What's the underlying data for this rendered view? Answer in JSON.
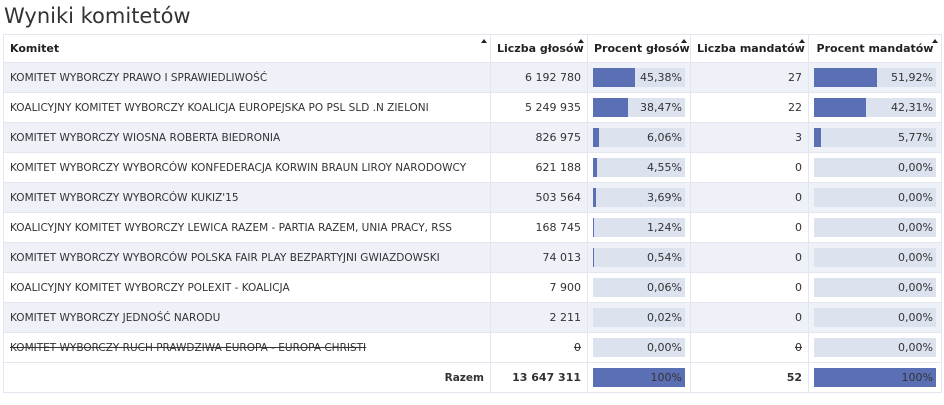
{
  "header": {
    "title": "Wyniki komitetów"
  },
  "table": {
    "columns": [
      "Komitet",
      "Liczba głosów",
      "Procent głosów",
      "Liczba mandatów",
      "Procent mandatów"
    ],
    "rows": [
      [
        "KOMITET WYBORCZY PRAWO I SPRAWIEDLIWOŚĆ",
        "6 192 780",
        "45,38%",
        "27",
        "51,92%"
      ],
      [
        "KOALICYJNY KOMITET WYBORCZY KOALICJA EUROPEJSKA PO PSL SLD .N ZIELONI",
        "5 249 935",
        "38,47%",
        "22",
        "42,31%"
      ],
      [
        "KOMITET WYBORCZY WIOSNA ROBERTA BIEDRONIA",
        "826 975",
        "6,06%",
        "3",
        "5,77%"
      ],
      [
        "KOMITET WYBORCZY WYBORCÓW KONFEDERACJA KORWIN BRAUN LIROY NARODOWCY",
        "621 188",
        "4,55%",
        "0",
        "0,00%"
      ],
      [
        "KOMITET WYBORCZY WYBORCÓW KUKIZ'15",
        "503 564",
        "3,69%",
        "0",
        "0,00%"
      ],
      [
        "KOALICYJNY KOMITET WYBORCZY LEWICA RAZEM - PARTIA RAZEM, UNIA PRACY, RSS",
        "168 745",
        "1,24%",
        "0",
        "0,00%"
      ],
      [
        "KOMITET WYBORCZY WYBORCÓW POLSKA FAIR PLAY BEZPARTYJNI GWIAZDOWSKI",
        "74 013",
        "0,54%",
        "0",
        "0,00%"
      ],
      [
        "KOALICYJNY KOMITET WYBORCZY POLEXIT - KOALICJA",
        "7 900",
        "0,06%",
        "0",
        "0,00%"
      ],
      [
        "KOMITET WYBORCZY JEDNOŚĆ NARODU",
        "2 211",
        "0,02%",
        "0",
        "0,00%"
      ],
      [
        "KOMITET WYBORCZY RUCH PRAWDZIWA EUROPA - EUROPA CHRISTI",
        "0",
        "0,00%",
        "0",
        "0,00%"
      ]
    ],
    "total": [
      "Razem",
      "13 647 311",
      "100%",
      "52",
      "100%"
    ]
  }
}
